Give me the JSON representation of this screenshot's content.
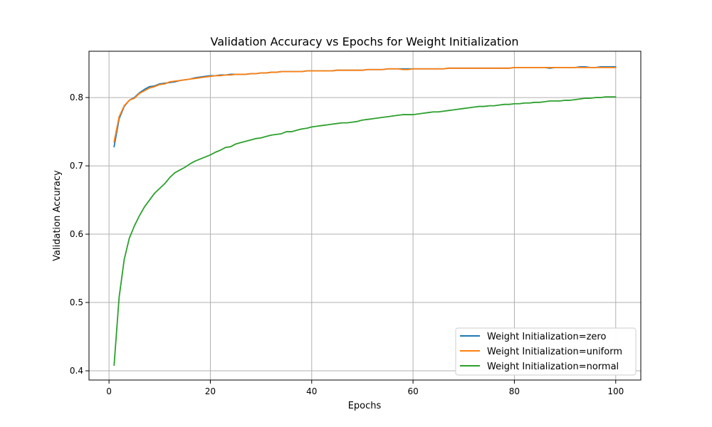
{
  "chart_data": {
    "type": "line",
    "title": "Validation Accuracy vs Epochs for Weight Initialization",
    "xlabel": "Epochs",
    "ylabel": "Validation Accuracy",
    "xlim": [
      -3.95,
      104.95
    ],
    "ylim": [
      0.3865,
      0.8678
    ],
    "xticks": [
      0,
      20,
      40,
      60,
      80,
      100
    ],
    "yticks": [
      0.4,
      0.5,
      0.6,
      0.7,
      0.8
    ],
    "grid": true,
    "legend_position": "lower-right",
    "x": [
      1,
      2,
      3,
      4,
      5,
      6,
      7,
      8,
      9,
      10,
      11,
      12,
      13,
      14,
      15,
      16,
      17,
      18,
      19,
      20,
      21,
      22,
      23,
      24,
      25,
      26,
      27,
      28,
      29,
      30,
      31,
      32,
      33,
      34,
      35,
      36,
      37,
      38,
      39,
      40,
      41,
      42,
      43,
      44,
      45,
      46,
      47,
      48,
      49,
      50,
      51,
      52,
      53,
      54,
      55,
      56,
      57,
      58,
      59,
      60,
      61,
      62,
      63,
      64,
      65,
      66,
      67,
      68,
      69,
      70,
      71,
      72,
      73,
      74,
      75,
      76,
      77,
      78,
      79,
      80,
      81,
      82,
      83,
      84,
      85,
      86,
      87,
      88,
      89,
      90,
      91,
      92,
      93,
      94,
      95,
      96,
      97,
      98,
      99,
      100
    ],
    "series": [
      {
        "name": "Weight Initialization=zero",
        "color": "#1f77b4",
        "values": [
          0.728,
          0.769,
          0.787,
          0.796,
          0.8,
          0.807,
          0.812,
          0.816,
          0.817,
          0.82,
          0.821,
          0.822,
          0.823,
          0.825,
          0.826,
          0.827,
          0.829,
          0.83,
          0.831,
          0.832,
          0.832,
          0.833,
          0.833,
          0.834,
          0.834,
          0.834,
          0.834,
          0.835,
          0.835,
          0.836,
          0.836,
          0.837,
          0.837,
          0.838,
          0.838,
          0.838,
          0.838,
          0.838,
          0.839,
          0.839,
          0.839,
          0.839,
          0.839,
          0.839,
          0.84,
          0.84,
          0.84,
          0.84,
          0.84,
          0.84,
          0.841,
          0.841,
          0.841,
          0.841,
          0.842,
          0.842,
          0.842,
          0.842,
          0.842,
          0.842,
          0.842,
          0.842,
          0.842,
          0.842,
          0.842,
          0.842,
          0.843,
          0.843,
          0.843,
          0.843,
          0.843,
          0.843,
          0.843,
          0.843,
          0.843,
          0.843,
          0.843,
          0.843,
          0.843,
          0.844,
          0.844,
          0.844,
          0.844,
          0.844,
          0.844,
          0.844,
          0.843,
          0.844,
          0.844,
          0.844,
          0.844,
          0.844,
          0.845,
          0.845,
          0.844,
          0.844,
          0.845,
          0.845,
          0.845,
          0.845
        ]
      },
      {
        "name": "Weight Initialization=uniform",
        "color": "#ff7f0e",
        "values": [
          0.735,
          0.772,
          0.788,
          0.796,
          0.799,
          0.806,
          0.81,
          0.814,
          0.816,
          0.819,
          0.82,
          0.823,
          0.824,
          0.825,
          0.826,
          0.827,
          0.828,
          0.829,
          0.83,
          0.831,
          0.832,
          0.832,
          0.833,
          0.833,
          0.834,
          0.834,
          0.834,
          0.835,
          0.835,
          0.836,
          0.836,
          0.837,
          0.837,
          0.838,
          0.838,
          0.838,
          0.838,
          0.838,
          0.839,
          0.839,
          0.839,
          0.839,
          0.839,
          0.839,
          0.84,
          0.84,
          0.84,
          0.84,
          0.84,
          0.84,
          0.841,
          0.841,
          0.841,
          0.841,
          0.842,
          0.842,
          0.842,
          0.841,
          0.841,
          0.842,
          0.842,
          0.842,
          0.842,
          0.842,
          0.842,
          0.842,
          0.843,
          0.843,
          0.843,
          0.843,
          0.843,
          0.843,
          0.843,
          0.843,
          0.843,
          0.843,
          0.843,
          0.843,
          0.843,
          0.844,
          0.844,
          0.844,
          0.844,
          0.844,
          0.844,
          0.844,
          0.844,
          0.844,
          0.844,
          0.844,
          0.844,
          0.844,
          0.844,
          0.844,
          0.844,
          0.844,
          0.844,
          0.844,
          0.844,
          0.844
        ]
      },
      {
        "name": "Weight Initialization=normal",
        "color": "#2ca02c",
        "values": [
          0.408,
          0.508,
          0.563,
          0.594,
          0.612,
          0.627,
          0.64,
          0.65,
          0.66,
          0.667,
          0.674,
          0.683,
          0.69,
          0.694,
          0.698,
          0.703,
          0.707,
          0.71,
          0.713,
          0.716,
          0.72,
          0.723,
          0.727,
          0.728,
          0.732,
          0.734,
          0.736,
          0.738,
          0.74,
          0.741,
          0.743,
          0.745,
          0.746,
          0.747,
          0.75,
          0.75,
          0.752,
          0.754,
          0.755,
          0.757,
          0.758,
          0.759,
          0.76,
          0.761,
          0.762,
          0.763,
          0.763,
          0.764,
          0.765,
          0.767,
          0.768,
          0.769,
          0.77,
          0.771,
          0.772,
          0.773,
          0.774,
          0.775,
          0.775,
          0.775,
          0.776,
          0.777,
          0.778,
          0.779,
          0.779,
          0.78,
          0.781,
          0.782,
          0.783,
          0.784,
          0.785,
          0.786,
          0.787,
          0.787,
          0.788,
          0.788,
          0.789,
          0.79,
          0.79,
          0.791,
          0.791,
          0.792,
          0.792,
          0.793,
          0.793,
          0.794,
          0.795,
          0.795,
          0.795,
          0.796,
          0.796,
          0.797,
          0.798,
          0.799,
          0.799,
          0.8,
          0.8,
          0.801,
          0.801,
          0.801
        ]
      }
    ]
  }
}
